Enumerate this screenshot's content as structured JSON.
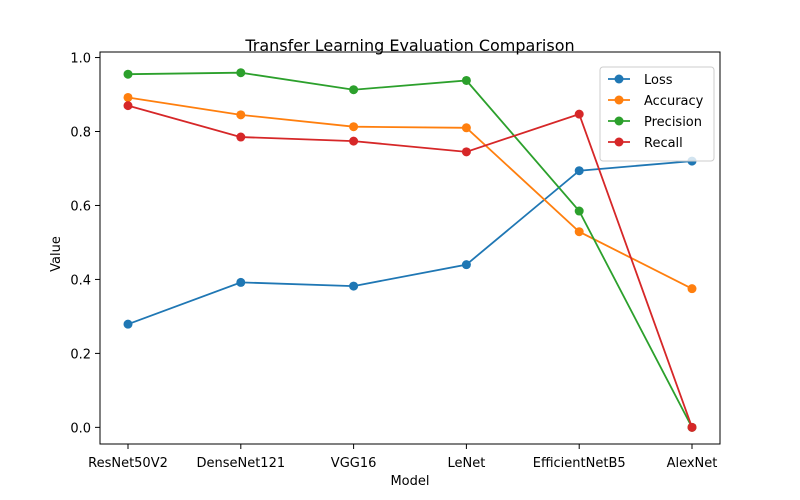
{
  "chart_data": {
    "type": "line",
    "title": "Transfer Learning Evaluation Comparison",
    "xlabel": "Model",
    "ylabel": "Value",
    "categories": [
      "ResNet50V2",
      "DenseNet121",
      "VGG16",
      "LeNet",
      "EfficientNetB5",
      "AlexNet"
    ],
    "ylim": [
      -0.045,
      1.015
    ],
    "yticks": [
      0.0,
      0.2,
      0.4,
      0.6,
      0.8,
      1.0
    ],
    "ytick_labels": [
      "0.0",
      "0.2",
      "0.4",
      "0.6",
      "0.8",
      "1.0"
    ],
    "grid": false,
    "legend_position": "top-right",
    "series": [
      {
        "name": "Loss",
        "color": "#1f77b4",
        "values": [
          0.279,
          0.392,
          0.382,
          0.44,
          0.694,
          0.72
        ]
      },
      {
        "name": "Accuracy",
        "color": "#ff7f0e",
        "values": [
          0.892,
          0.845,
          0.813,
          0.81,
          0.529,
          0.375
        ]
      },
      {
        "name": "Precision",
        "color": "#2ca02c",
        "values": [
          0.955,
          0.959,
          0.913,
          0.938,
          0.585,
          0.0
        ]
      },
      {
        "name": "Recall",
        "color": "#d62728",
        "values": [
          0.87,
          0.785,
          0.774,
          0.745,
          0.847,
          0.0
        ]
      }
    ]
  }
}
